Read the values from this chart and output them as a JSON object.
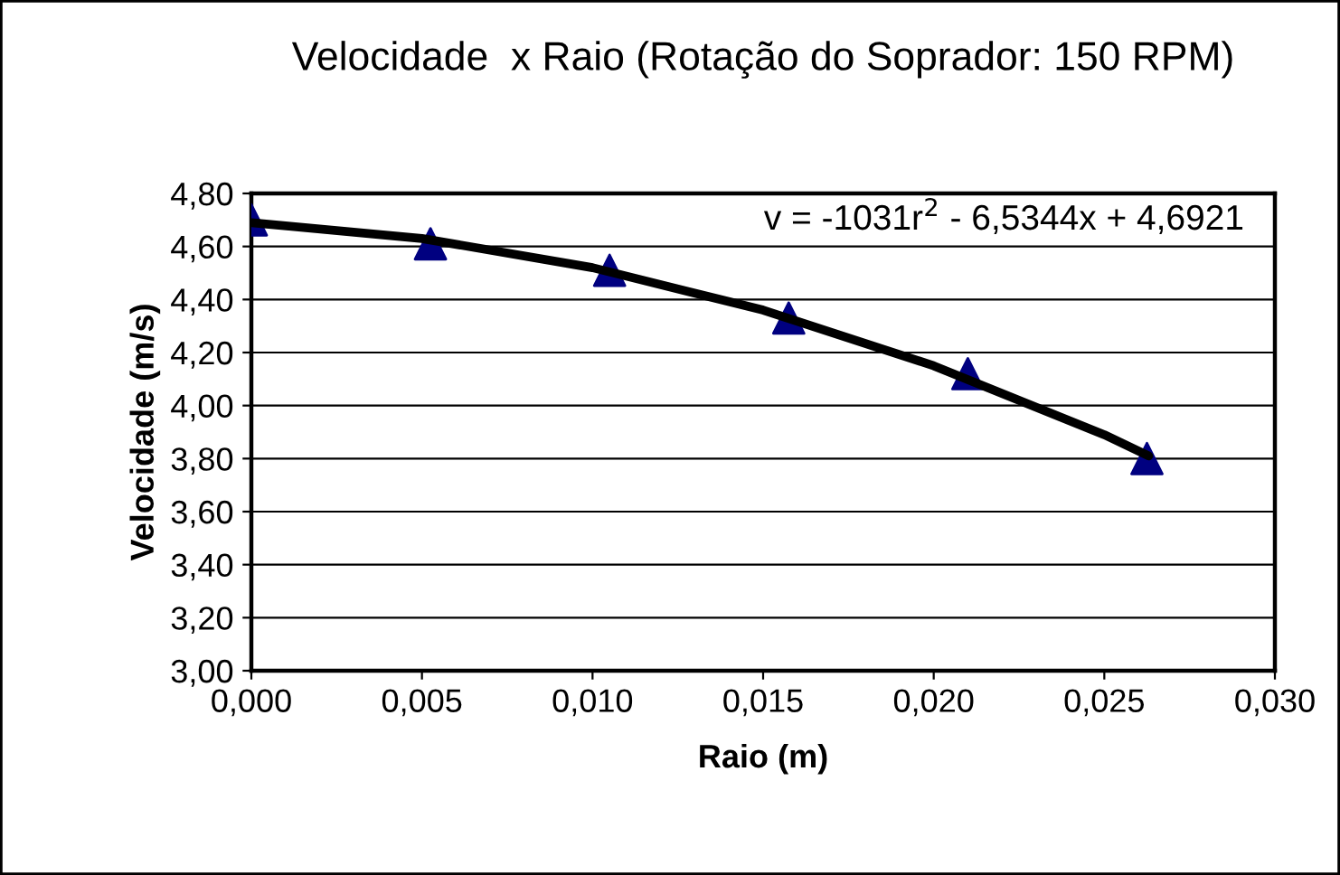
{
  "chart_data": {
    "type": "scatter",
    "title": "Velocidade  x Raio (Rotação do Soprador: 150 RPM)",
    "xlabel": "Raio (m)",
    "ylabel": "Velocidade (m/s)",
    "series": [
      {
        "color": "#000080",
        "marker": "triangle",
        "x": [
          0.0,
          0.00525,
          0.0105,
          0.01575,
          0.021,
          0.02625
        ],
        "values": [
          4.7,
          4.61,
          4.51,
          4.33,
          4.12,
          3.8
        ]
      },
      {
        "type": "line",
        "color": "#000000",
        "marker": "none",
        "line_style": "solid",
        "x": [
          0.0,
          0.005,
          0.01,
          0.015,
          0.02,
          0.025,
          0.0263
        ],
        "values": [
          4.69,
          4.63,
          4.52,
          4.36,
          4.15,
          3.89,
          3.81
        ]
      }
    ],
    "annotations": [
      "v = -1031r$^{2}$ - 6,5344x + 4,6921"
    ],
    "xlim": [
      0.0,
      0.03
    ],
    "ylim": [
      3.0,
      4.8
    ],
    "xticks": [
      {
        "value": 0.0,
        "label": "0,000"
      },
      {
        "value": 0.005,
        "label": "0,005"
      },
      {
        "value": 0.01,
        "label": "0,010"
      },
      {
        "value": 0.015,
        "label": "0,015"
      },
      {
        "value": 0.02,
        "label": "0,020"
      },
      {
        "value": 0.025,
        "label": "0,025"
      },
      {
        "value": 0.03,
        "label": "0,030"
      }
    ],
    "yticks": [
      {
        "value": 3.0,
        "label": "3,00"
      },
      {
        "value": 3.2,
        "label": "3,20"
      },
      {
        "value": 3.4,
        "label": "3,40"
      },
      {
        "value": 3.6,
        "label": "3,60"
      },
      {
        "value": 3.8,
        "label": "3,80"
      },
      {
        "value": 4.0,
        "label": "4,00"
      },
      {
        "value": 4.2,
        "label": "4,20"
      },
      {
        "value": 4.4,
        "label": "4,40"
      },
      {
        "value": 4.6,
        "label": "4,60"
      },
      {
        "value": 4.8,
        "label": "4,80"
      }
    ],
    "grid": "y",
    "legend": false
  }
}
